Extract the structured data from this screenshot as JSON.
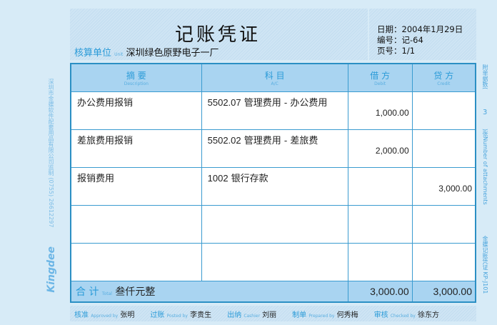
{
  "title": "记账凭证",
  "unit": {
    "label": "核算单位",
    "label_en": "Unit",
    "value": "深圳绿色原野电子一厂"
  },
  "meta": {
    "date": "日期：2004年1月29日",
    "number": "编号：记-64",
    "page": "页号：1/1"
  },
  "columns": [
    {
      "label": "摘 要",
      "en": "Description"
    },
    {
      "label": "科 目",
      "en": "A/C"
    },
    {
      "label": "借 方",
      "en": "Debit"
    },
    {
      "label": "贷 方",
      "en": "Credit"
    }
  ],
  "rows": [
    {
      "desc": "办公费用报销",
      "code": "5502.07",
      "account": " 管理费用 - 办公费用",
      "debit": "1,000.00",
      "credit": ""
    },
    {
      "desc": "差旅费用报销",
      "code": "5502.02",
      "account": " 管理费用 - 差旅费",
      "debit": "2,000.00",
      "credit": ""
    },
    {
      "desc": "报销费用",
      "code": "1002",
      "account": " 银行存款",
      "debit": "",
      "credit": "3,000.00"
    },
    {
      "desc": "",
      "code": "",
      "account": "",
      "debit": "",
      "credit": ""
    },
    {
      "desc": "",
      "code": "",
      "account": "",
      "debit": "",
      "credit": ""
    }
  ],
  "total": {
    "label": "合 计",
    "en": "Total",
    "words": "叁仟元整",
    "debit": "3,000.00",
    "credit": "3,000.00"
  },
  "footer": [
    {
      "label": "核准",
      "en": "Approved by",
      "name": "张明"
    },
    {
      "label": "过账",
      "en": "Posted by",
      "name": "李贵生"
    },
    {
      "label": "出纳",
      "en": "Cashier",
      "name": "刘丽"
    },
    {
      "label": "制单",
      "en": "Prepared by",
      "name": "何秀梅"
    },
    {
      "label": "审核",
      "en": "Checked by",
      "name": "徐东方"
    }
  ],
  "side": {
    "printer": "深圳市金蝶软件配套用品有限公司监制  (0755) 26612297",
    "logo": "Kingdee",
    "attach_label": "附单据数(",
    "attach_count": "3",
    "attach_en": ")张Number of attachments",
    "form": "金蝶记账凭证 KP-J101"
  }
}
